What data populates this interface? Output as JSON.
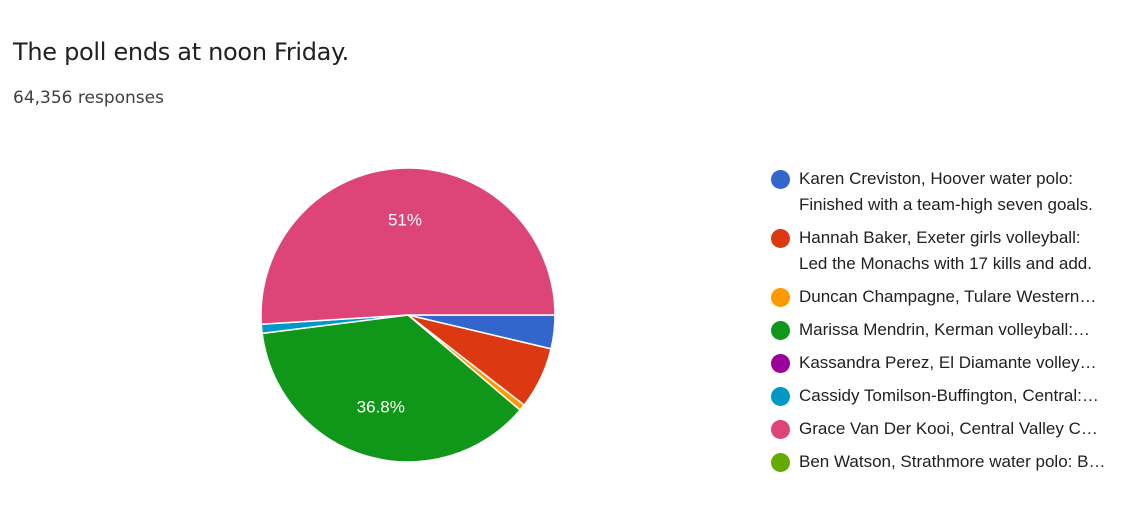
{
  "header": {
    "title": "The poll ends at noon Friday.",
    "responses": "64,356 responses"
  },
  "chart_data": {
    "type": "pie",
    "title": "The poll ends at noon Friday.",
    "legend_position": "right",
    "start_direction": "right",
    "slices": [
      {
        "label": "Karen Creviston, Hoover water polo: Finished with a team-high seven goals.",
        "lines": [
          "Karen Creviston, Hoover water polo:",
          "Finished with a team-high seven goals."
        ],
        "value": 3.7,
        "color": "#3366cc",
        "data_label": ""
      },
      {
        "label": "Hannah Baker, Exeter girls volleyball: Led the Monachs with 17 kills and add.",
        "lines": [
          "Hannah Baker, Exeter girls volleyball:",
          "Led the Monachs with 17 kills and add."
        ],
        "value": 6.8,
        "color": "#dc3912",
        "data_label": ""
      },
      {
        "label": "Duncan Champagne, Tulare Western…",
        "lines": [
          "Duncan Champagne, Tulare Western…"
        ],
        "value": 0.7,
        "color": "#ff9900",
        "data_label": ""
      },
      {
        "label": "Marissa Mendrin, Kerman volleyball:…",
        "lines": [
          "Marissa Mendrin, Kerman volleyball:…"
        ],
        "value": 36.8,
        "color": "#109618",
        "data_label": "36.8%"
      },
      {
        "label": "Kassandra Perez, El Diamante volley…",
        "lines": [
          "Kassandra Perez, El Diamante volley…"
        ],
        "value": 0.0,
        "color": "#990099",
        "data_label": ""
      },
      {
        "label": "Cassidy Tomilson-Buffington, Central:…",
        "lines": [
          "Cassidy Tomilson-Buffington, Central:…"
        ],
        "value": 1.0,
        "color": "#0099c6",
        "data_label": ""
      },
      {
        "label": "Grace Van Der Kooi, Central Valley C…",
        "lines": [
          "Grace Van Der Kooi, Central Valley C…"
        ],
        "value": 51.0,
        "color": "#dd4477",
        "data_label": "51%"
      },
      {
        "label": "Ben Watson, Strathmore water polo: B…",
        "lines": [
          "Ben Watson, Strathmore water polo: B…"
        ],
        "value": 0.0,
        "color": "#66aa00",
        "data_label": ""
      }
    ]
  }
}
